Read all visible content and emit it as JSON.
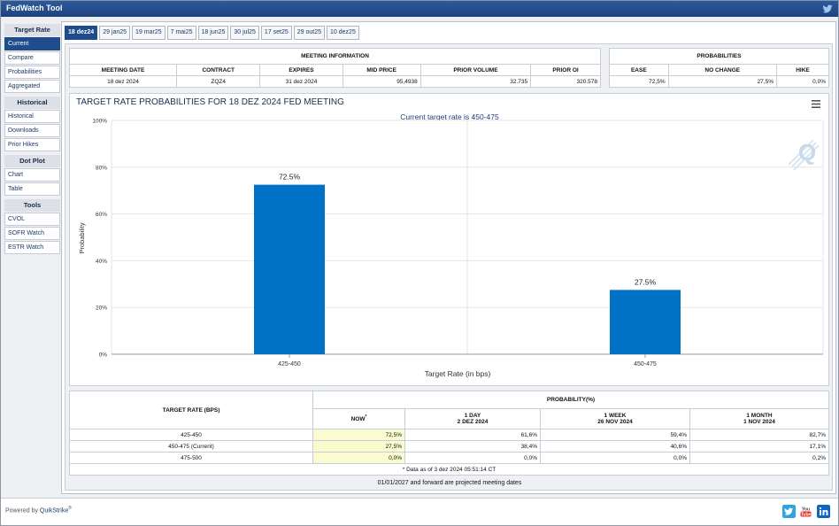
{
  "app": {
    "title": "FedWatch Tool"
  },
  "sidebar": {
    "sections": [
      {
        "header": "Target Rate",
        "items": [
          "Current",
          "Compare",
          "Probabilities",
          "Aggregated"
        ]
      },
      {
        "header": "Historical",
        "items": [
          "Historical",
          "Downloads",
          "Prior Hikes"
        ]
      },
      {
        "header": "Dot Plot",
        "items": [
          "Chart",
          "Table"
        ]
      },
      {
        "header": "Tools",
        "items": [
          "CVOL",
          "SOFR Watch",
          "ESTR Watch"
        ]
      }
    ],
    "active": "Current"
  },
  "tabs": [
    "18 dez24",
    "29 jan25",
    "19 mar25",
    "7 mai25",
    "18 jun25",
    "30 jul25",
    "17 set25",
    "29 out25",
    "10 dez25"
  ],
  "meeting_info": {
    "caption": "MEETING INFORMATION",
    "headers": [
      "MEETING DATE",
      "CONTRACT",
      "EXPIRES",
      "MID PRICE",
      "PRIOR VOLUME",
      "PRIOR OI"
    ],
    "values": [
      "18 dez 2024",
      "ZQZ4",
      "31 dez 2024",
      "95,4938",
      "32.735",
      "320.578"
    ]
  },
  "probabilities": {
    "caption": "PROBABILITIES",
    "headers": [
      "EASE",
      "NO CHANGE",
      "HIKE"
    ],
    "values": [
      "72,5%",
      "27,5%",
      "0,0%"
    ]
  },
  "chart": {
    "title": "TARGET RATE PROBABILITIES FOR 18 DEZ 2024 FED MEETING",
    "subtitle": "Current target rate is 450-475",
    "logo": "Q"
  },
  "chart_data": {
    "type": "bar",
    "categories": [
      "425-450",
      "450-475"
    ],
    "values": [
      72.5,
      27.5
    ],
    "data_labels": [
      "72.5%",
      "27.5%"
    ],
    "xlabel": "Target Rate (in bps)",
    "ylabel": "Probability",
    "ylim": [
      0,
      100
    ],
    "yticks": [
      "0%",
      "20%",
      "40%",
      "60%",
      "80%",
      "100%"
    ],
    "bar_color": "#0072c6",
    "grid": true
  },
  "prob_table": {
    "col1_header": "TARGET RATE (BPS)",
    "group_header": "PROBABILITY(%)",
    "columns": [
      {
        "l1": "NOW",
        "l2": ""
      },
      {
        "l1": "1 DAY",
        "l2": "2 DEZ 2024"
      },
      {
        "l1": "1 WEEK",
        "l2": "26 NOV 2024"
      },
      {
        "l1": "1 MONTH",
        "l2": "1 NOV 2024"
      }
    ],
    "rows": [
      {
        "rate": "425-450",
        "vals": [
          "72,5%",
          "61,6%",
          "59,4%",
          "82,7%"
        ]
      },
      {
        "rate": "450-475 (Current)",
        "vals": [
          "27,5%",
          "38,4%",
          "40,6%",
          "17,1%"
        ]
      },
      {
        "rate": "475-500",
        "vals": [
          "0,0%",
          "0,0%",
          "0,0%",
          "0,2%"
        ]
      }
    ],
    "asof": "* Data as of 3 dez 2024 05:51:14 CT"
  },
  "projected_note": "01/01/2027 and forward are projected meeting dates",
  "footer": {
    "powered": "Powered by",
    "brand": "QuikStrike",
    "reg": "®"
  },
  "colors": {
    "header_blue": "#1f4c8c",
    "bar": "#0072c6",
    "highlight": "#fafbcf"
  }
}
